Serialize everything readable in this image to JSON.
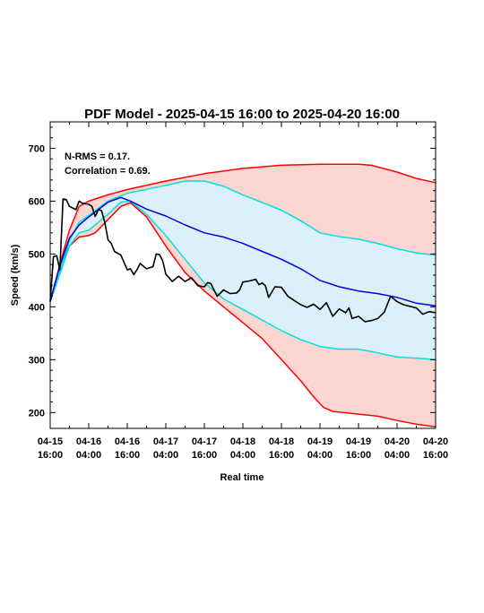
{
  "chart_data": {
    "type": "line",
    "title": "PDF Model - 2025-04-15 16:00 to 2025-04-20 16:00",
    "xlabel": "Real time",
    "ylabel": "Speed (km/s)",
    "ylim": [
      170,
      750
    ],
    "yticks": [
      200,
      300,
      400,
      500,
      600,
      700
    ],
    "xlim": [
      0,
      120
    ],
    "xticks": [
      {
        "hour": 0,
        "date": "04-15",
        "time": "16:00"
      },
      {
        "hour": 12,
        "date": "04-16",
        "time": "04:00"
      },
      {
        "hour": 24,
        "date": "04-16",
        "time": "16:00"
      },
      {
        "hour": 36,
        "date": "04-17",
        "time": "04:00"
      },
      {
        "hour": 48,
        "date": "04-17",
        "time": "16:00"
      },
      {
        "hour": 60,
        "date": "04-18",
        "time": "04:00"
      },
      {
        "hour": 72,
        "date": "04-18",
        "time": "16:00"
      },
      {
        "hour": 84,
        "date": "04-19",
        "time": "04:00"
      },
      {
        "hour": 96,
        "date": "04-19",
        "time": "16:00"
      },
      {
        "hour": 108,
        "date": "04-20",
        "time": "04:00"
      },
      {
        "hour": 120,
        "date": "04-20",
        "time": "16:00"
      }
    ],
    "x_units": "hours after 2025-04-15 16:00",
    "grid": false,
    "annotations": [
      "N-RMS = 0.17.",
      "Correlation = 0.69."
    ],
    "series": [
      {
        "role": "outer_band_upper",
        "color": "#ff0000",
        "x": [
          0,
          3,
          6,
          9,
          12,
          18,
          24,
          36,
          48,
          60,
          72,
          84,
          96,
          100,
          108,
          114,
          120
        ],
        "y": [
          410,
          480,
          545,
          590,
          600,
          612,
          622,
          638,
          652,
          662,
          668,
          670,
          670,
          668,
          655,
          643,
          635
        ]
      },
      {
        "role": "outer_band_lower",
        "color": "#ff0000",
        "x": [
          0,
          3,
          6,
          9,
          12,
          14,
          18,
          22,
          25,
          30,
          36,
          42,
          48,
          54,
          60,
          66,
          72,
          78,
          82,
          85,
          88,
          96,
          102,
          108,
          114,
          120
        ],
        "y": [
          410,
          475,
          515,
          532,
          535,
          540,
          565,
          590,
          597,
          570,
          515,
          465,
          430,
          400,
          370,
          340,
          300,
          260,
          230,
          210,
          202,
          197,
          193,
          185,
          178,
          173
        ]
      },
      {
        "role": "inner_band_upper",
        "color": "#00e0e0",
        "x": [
          0,
          3,
          6,
          9,
          12,
          18,
          24,
          36,
          42,
          48,
          54,
          60,
          72,
          78,
          84,
          90,
          96,
          102,
          108,
          114,
          120
        ],
        "y": [
          410,
          470,
          525,
          560,
          573,
          600,
          615,
          630,
          638,
          638,
          628,
          612,
          583,
          563,
          540,
          533,
          528,
          520,
          510,
          502,
          498
        ]
      },
      {
        "role": "inner_band_lower",
        "color": "#00e0e0",
        "x": [
          0,
          3,
          6,
          9,
          12,
          18,
          22,
          25,
          30,
          36,
          42,
          48,
          54,
          60,
          66,
          72,
          78,
          84,
          90,
          96,
          102,
          108,
          114,
          120
        ],
        "y": [
          410,
          462,
          515,
          540,
          545,
          575,
          598,
          600,
          575,
          535,
          490,
          445,
          415,
          395,
          375,
          355,
          338,
          325,
          320,
          320,
          313,
          305,
          303,
          300
        ]
      },
      {
        "role": "median",
        "color": "#0000e0",
        "x": [
          0,
          3,
          6,
          9,
          12,
          18,
          22,
          25,
          30,
          36,
          42,
          48,
          54,
          60,
          66,
          72,
          78,
          84,
          90,
          96,
          102,
          108,
          114,
          120
        ],
        "y": [
          410,
          478,
          530,
          555,
          570,
          598,
          607,
          600,
          585,
          572,
          555,
          540,
          532,
          520,
          505,
          490,
          472,
          450,
          438,
          430,
          425,
          418,
          407,
          402
        ]
      },
      {
        "role": "observed",
        "color": "#000000",
        "x": [
          0,
          1,
          2,
          3,
          4,
          5,
          6,
          8,
          9,
          10,
          12,
          13,
          14,
          15,
          16,
          17,
          18,
          19,
          20,
          22,
          24,
          25,
          26,
          27,
          28,
          30,
          32,
          33,
          34,
          35,
          36,
          38,
          40,
          42,
          44,
          46,
          48,
          49,
          50,
          52,
          54,
          56,
          58,
          59,
          60,
          62,
          64,
          65,
          66,
          67,
          68,
          70,
          72,
          74,
          76,
          78,
          80,
          82,
          84,
          86,
          88,
          90,
          92,
          93,
          94,
          96,
          98,
          99,
          100,
          102,
          104,
          106,
          108,
          110,
          112,
          114,
          116,
          118,
          120
        ],
        "y": [
          410,
          495,
          497,
          470,
          604,
          603,
          590,
          584,
          600,
          596,
          594,
          590,
          571,
          584,
          582,
          560,
          527,
          520,
          505,
          498,
          470,
          472,
          461,
          470,
          482,
          472,
          476,
          500,
          499,
          488,
          462,
          448,
          458,
          448,
          455,
          440,
          438,
          446,
          444,
          420,
          432,
          425,
          426,
          432,
          447,
          449,
          452,
          442,
          445,
          440,
          418,
          438,
          437,
          420,
          412,
          404,
          399,
          405,
          395,
          408,
          382,
          396,
          389,
          398,
          378,
          382,
          372,
          373,
          374,
          378,
          390,
          420,
          410,
          404,
          401,
          398,
          386,
          391,
          389
        ]
      }
    ]
  }
}
